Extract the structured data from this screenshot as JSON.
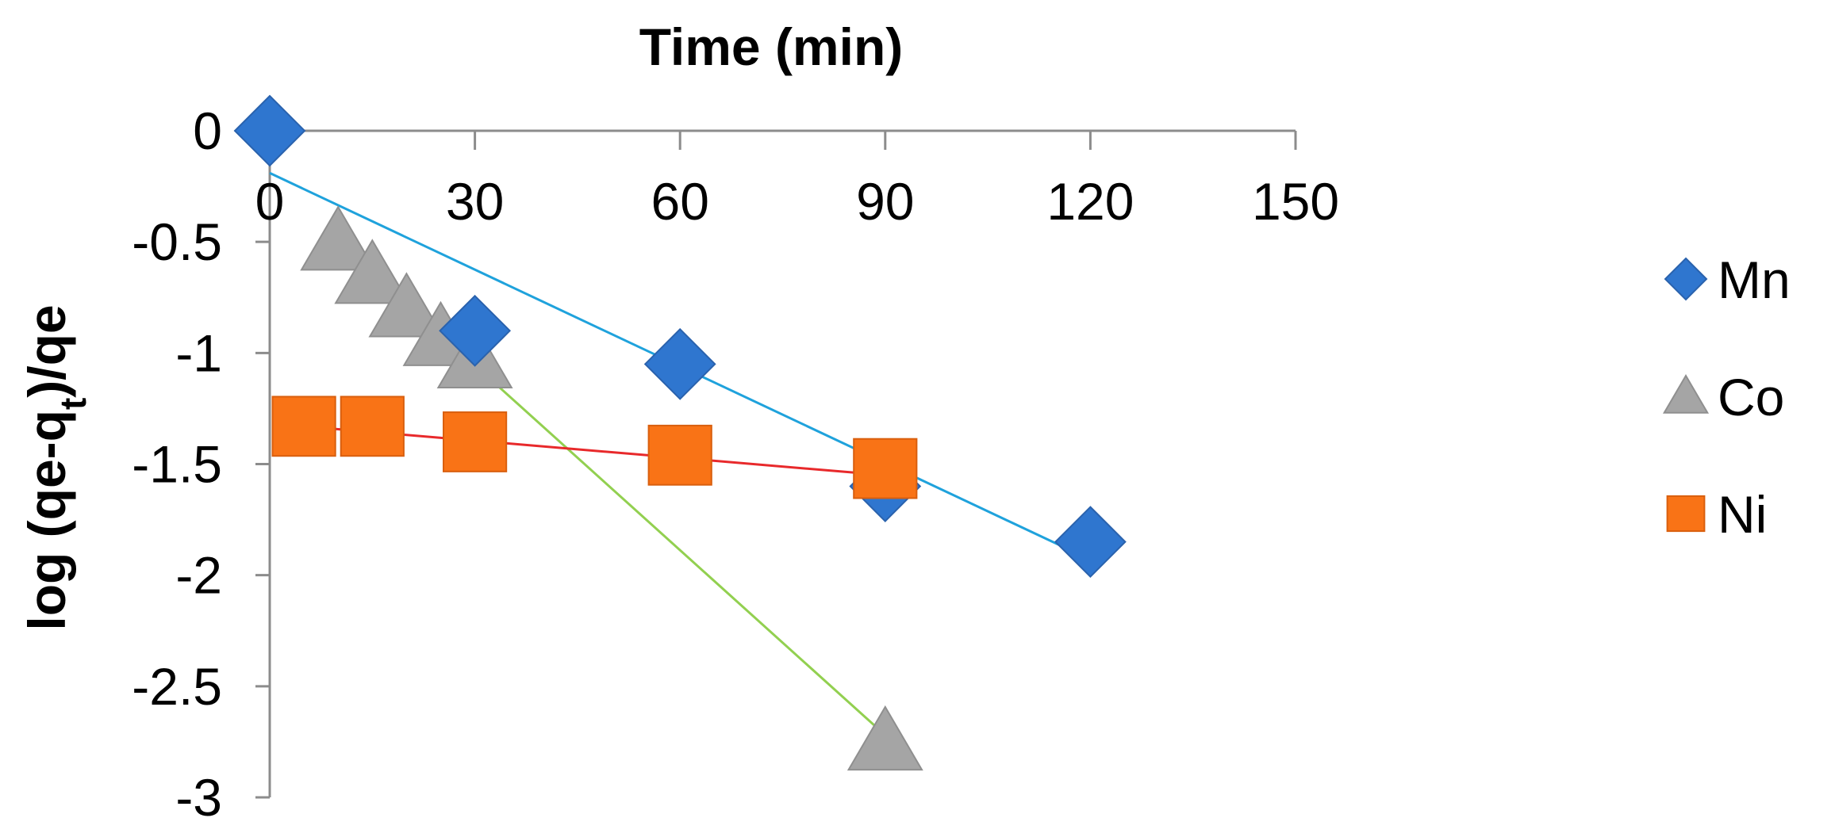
{
  "chart_data": {
    "type": "scatter",
    "title": "",
    "xlabel": "Time (min)",
    "ylabel": {
      "prefix": "log (qe-q",
      "sub": "t",
      "suffix": ")/qe"
    },
    "xlim": [
      0,
      150
    ],
    "ylim": [
      -3,
      0
    ],
    "x_ticks": [
      0,
      30,
      60,
      90,
      120,
      150
    ],
    "y_ticks": [
      0,
      -0.5,
      -1,
      -1.5,
      -2,
      -2.5,
      -3
    ],
    "x_axis_position": "top, at y = 0",
    "grid": false,
    "legend": "right",
    "series": [
      {
        "name": "Mn",
        "marker": "diamond",
        "color": "#2F76CF",
        "trend_color": "#1FA2DC",
        "points": [
          [
            0,
            0
          ],
          [
            30,
            -0.9
          ],
          [
            60,
            -1.05
          ],
          [
            90,
            -1.6
          ],
          [
            120,
            -1.85
          ]
        ],
        "trendline": [
          [
            0,
            -0.19
          ],
          [
            120,
            -1.93
          ]
        ]
      },
      {
        "name": "Co",
        "marker": "triangle",
        "color": "#A5A5A5",
        "trend_color": "#92D050",
        "points": [
          [
            10,
            -0.5
          ],
          [
            15,
            -0.65
          ],
          [
            20,
            -0.8
          ],
          [
            25,
            -0.93
          ],
          [
            30,
            -1.03
          ],
          [
            90,
            -2.75
          ]
        ],
        "trendline": [
          [
            10,
            -0.5
          ],
          [
            90,
            -2.72
          ]
        ]
      },
      {
        "name": "Ni",
        "marker": "square",
        "color": "#F97316",
        "trend_color": "#E8292B",
        "points": [
          [
            5,
            -1.33
          ],
          [
            15,
            -1.33
          ],
          [
            30,
            -1.4
          ],
          [
            60,
            -1.46
          ],
          [
            90,
            -1.52
          ]
        ],
        "trendline": [
          [
            5,
            -1.33
          ],
          [
            90,
            -1.55
          ]
        ]
      }
    ]
  }
}
